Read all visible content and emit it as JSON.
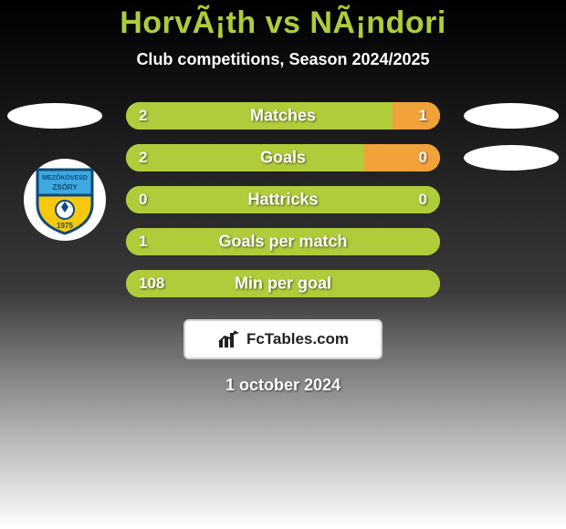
{
  "title": "HorvÃ¡th vs NÃ¡ndori",
  "subtitle": "Club competitions, Season 2024/2025",
  "date": "1 october 2024",
  "brand": "FcTables.com",
  "colors": {
    "bg_top": "#000000",
    "bg_mid": "#3a3a3a",
    "bg_bottom": "#ffffff",
    "title": "#b0cc3a",
    "subtitle": "#ffffff",
    "ellipse": "#ffffff",
    "label_text": "#ffffff",
    "value_text": "#ffffff",
    "bar_left": "#b0cc3a",
    "bar_right": "#f2a23a",
    "bar_neutral": "#b0cc3a",
    "fc_box_bg": "#ffffff",
    "fc_box_border": "#d0d0d0",
    "fc_text": "#222222",
    "date_text": "#ffffff",
    "badge_bg": "#ffffff"
  },
  "crest": {
    "top_color": "#3da9e0",
    "bottom_color": "#f6c90e",
    "outline": "#0e4a7b",
    "text_top": "MEZŐKÖVESD",
    "text_mid": "ZSÓRY",
    "year": "1975"
  },
  "rows": [
    {
      "label": "Matches",
      "left": "2",
      "right": "1",
      "left_pct": 85,
      "right_pct": 15,
      "show_left_ellipse": true,
      "show_right_ellipse": true,
      "show_badge": false
    },
    {
      "label": "Goals",
      "left": "2",
      "right": "0",
      "left_pct": 76,
      "right_pct": 24,
      "show_left_ellipse": false,
      "show_right_ellipse": true,
      "show_badge": false
    },
    {
      "label": "Hattricks",
      "left": "0",
      "right": "0",
      "left_pct": 100,
      "right_pct": 0,
      "show_left_ellipse": false,
      "show_right_ellipse": false,
      "show_badge": true
    },
    {
      "label": "Goals per match",
      "left": "1",
      "right": "",
      "left_pct": 100,
      "right_pct": 0,
      "show_left_ellipse": false,
      "show_right_ellipse": false,
      "show_badge": false
    },
    {
      "label": "Min per goal",
      "left": "108",
      "right": "",
      "left_pct": 100,
      "right_pct": 0,
      "show_left_ellipse": false,
      "show_right_ellipse": false,
      "show_badge": false
    }
  ]
}
